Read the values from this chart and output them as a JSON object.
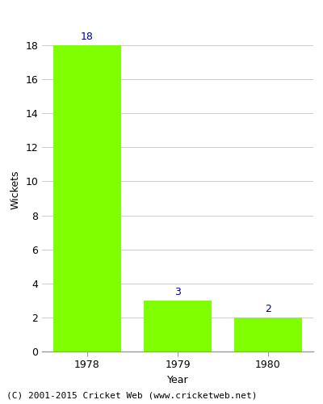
{
  "categories": [
    "1978",
    "1979",
    "1980"
  ],
  "values": [
    18,
    3,
    2
  ],
  "bar_color": "#7FFF00",
  "xlabel": "Year",
  "ylabel": "Wickets",
  "ylim": [
    0,
    19
  ],
  "yticks": [
    0,
    2,
    4,
    6,
    8,
    10,
    12,
    14,
    16,
    18
  ],
  "label_color": "#00008B",
  "label_fontsize": 9,
  "axis_label_fontsize": 9,
  "tick_fontsize": 9,
  "background_color": "#ffffff",
  "footer_text": "(C) 2001-2015 Cricket Web (www.cricketweb.net)",
  "footer_fontsize": 8,
  "bar_width": 0.75,
  "grid_color": "#cccccc",
  "spine_color": "#999999"
}
